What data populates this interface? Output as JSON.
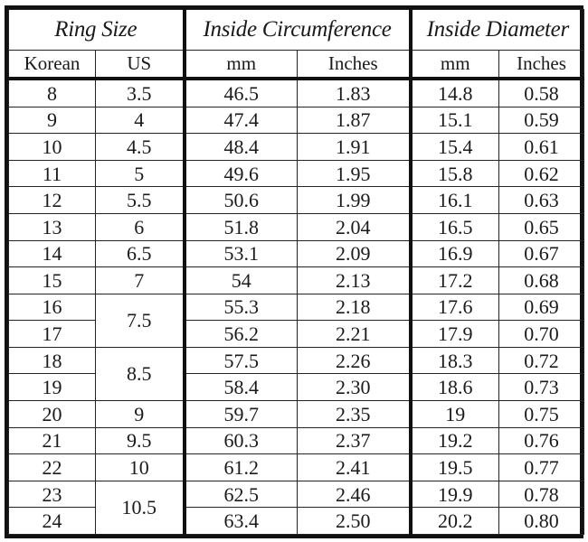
{
  "headers": {
    "ring_size": "Ring Size",
    "inside_circumference": "Inside Circumference",
    "inside_diameter": "Inside Diameter",
    "korean": "Korean",
    "us": "US",
    "circ_mm": "mm",
    "circ_inches": "Inches",
    "dia_mm": "mm",
    "dia_inches": "Inches"
  },
  "rows": [
    {
      "korean": "8",
      "us": "3.5",
      "us_rowspan": 1,
      "circ_mm": "46.5",
      "circ_in": "1.83",
      "dia_mm": "14.8",
      "dia_in": "0.58"
    },
    {
      "korean": "9",
      "us": "4",
      "us_rowspan": 1,
      "circ_mm": "47.4",
      "circ_in": "1.87",
      "dia_mm": "15.1",
      "dia_in": "0.59"
    },
    {
      "korean": "10",
      "us": "4.5",
      "us_rowspan": 1,
      "circ_mm": "48.4",
      "circ_in": "1.91",
      "dia_mm": "15.4",
      "dia_in": "0.61"
    },
    {
      "korean": "11",
      "us": "5",
      "us_rowspan": 1,
      "circ_mm": "49.6",
      "circ_in": "1.95",
      "dia_mm": "15.8",
      "dia_in": "0.62"
    },
    {
      "korean": "12",
      "us": "5.5",
      "us_rowspan": 1,
      "circ_mm": "50.6",
      "circ_in": "1.99",
      "dia_mm": "16.1",
      "dia_in": "0.63"
    },
    {
      "korean": "13",
      "us": "6",
      "us_rowspan": 1,
      "circ_mm": "51.8",
      "circ_in": "2.04",
      "dia_mm": "16.5",
      "dia_in": "0.65"
    },
    {
      "korean": "14",
      "us": "6.5",
      "us_rowspan": 1,
      "circ_mm": "53.1",
      "circ_in": "2.09",
      "dia_mm": "16.9",
      "dia_in": "0.67"
    },
    {
      "korean": "15",
      "us": "7",
      "us_rowspan": 1,
      "circ_mm": "54",
      "circ_in": "2.13",
      "dia_mm": "17.2",
      "dia_in": "0.68"
    },
    {
      "korean": "16",
      "us": "7.5",
      "us_rowspan": 2,
      "circ_mm": "55.3",
      "circ_in": "2.18",
      "dia_mm": "17.6",
      "dia_in": "0.69"
    },
    {
      "korean": "17",
      "us": null,
      "us_rowspan": 0,
      "circ_mm": "56.2",
      "circ_in": "2.21",
      "dia_mm": "17.9",
      "dia_in": "0.70"
    },
    {
      "korean": "18",
      "us": "8.5",
      "us_rowspan": 2,
      "circ_mm": "57.5",
      "circ_in": "2.26",
      "dia_mm": "18.3",
      "dia_in": "0.72"
    },
    {
      "korean": "19",
      "us": null,
      "us_rowspan": 0,
      "circ_mm": "58.4",
      "circ_in": "2.30",
      "dia_mm": "18.6",
      "dia_in": "0.73"
    },
    {
      "korean": "20",
      "us": "9",
      "us_rowspan": 1,
      "circ_mm": "59.7",
      "circ_in": "2.35",
      "dia_mm": "19",
      "dia_in": "0.75"
    },
    {
      "korean": "21",
      "us": "9.5",
      "us_rowspan": 1,
      "circ_mm": "60.3",
      "circ_in": "2.37",
      "dia_mm": "19.2",
      "dia_in": "0.76"
    },
    {
      "korean": "22",
      "us": "10",
      "us_rowspan": 1,
      "circ_mm": "61.2",
      "circ_in": "2.41",
      "dia_mm": "19.5",
      "dia_in": "0.77"
    },
    {
      "korean": "23",
      "us": "10.5",
      "us_rowspan": 2,
      "circ_mm": "62.5",
      "circ_in": "2.46",
      "dia_mm": "19.9",
      "dia_in": "0.78"
    },
    {
      "korean": "24",
      "us": null,
      "us_rowspan": 0,
      "circ_mm": "63.4",
      "circ_in": "2.50",
      "dia_mm": "20.2",
      "dia_in": "0.80"
    }
  ]
}
